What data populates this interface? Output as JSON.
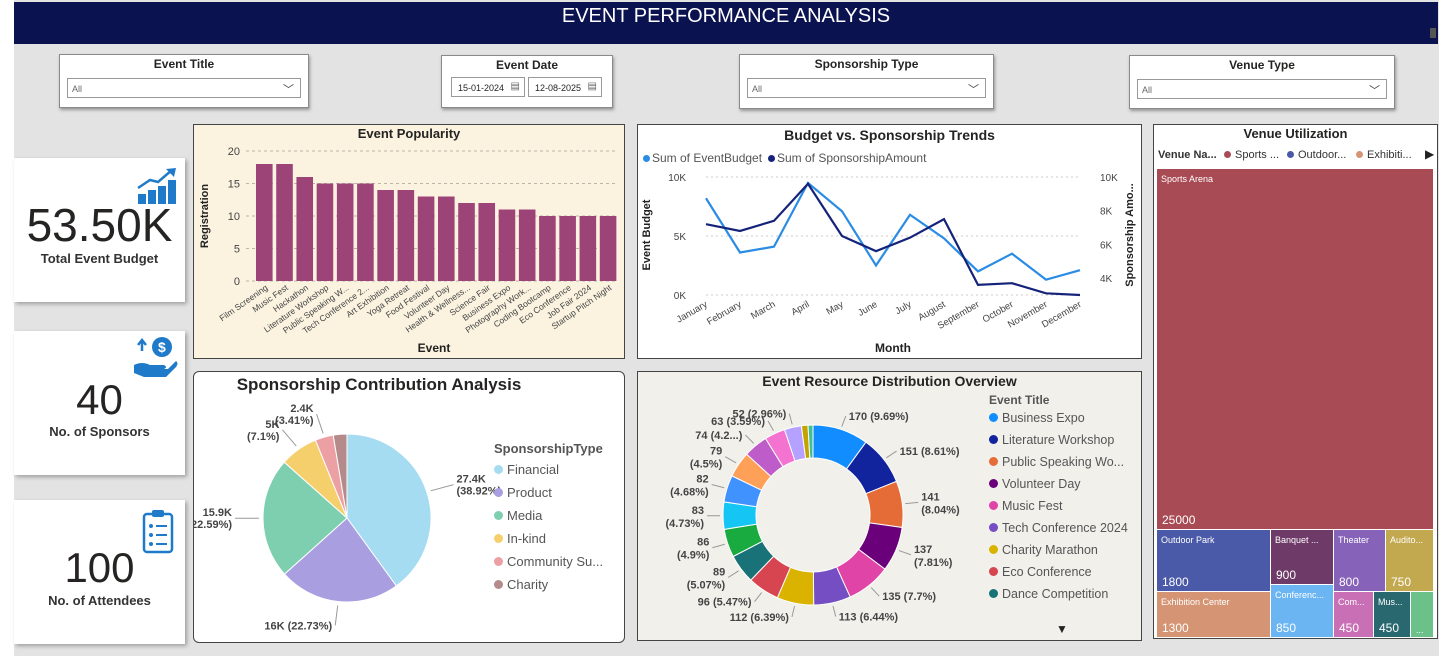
{
  "header": {
    "title": "EVENT PERFORMANCE ANALYSIS"
  },
  "filters": {
    "event_title": {
      "label": "Event Title",
      "value": "All"
    },
    "event_date": {
      "label": "Event Date",
      "start": "15-01-2024",
      "end": "12-08-2025"
    },
    "sponsorship_type": {
      "label": "Sponsorship Type",
      "value": "All"
    },
    "venue_type": {
      "label": "Venue Type",
      "value": "All"
    }
  },
  "kpis": {
    "budget": {
      "value": "53.50K",
      "label": "Total Event Budget",
      "icon": "growth-chart-icon"
    },
    "sponsors": {
      "value": "40",
      "label": "No. of Sponsors",
      "icon": "hand-money-icon"
    },
    "attendees": {
      "value": "100",
      "label": "No. of Attendees",
      "icon": "clipboard-icon"
    }
  },
  "colors": {
    "bar": "#9c4378",
    "line_budget": "#2a8ce4",
    "line_sponsor": "#15227a",
    "header": "#0b1250"
  },
  "chart_data": [
    {
      "type": "bar",
      "title": "Event Popularity",
      "xlabel": "Event",
      "ylabel": "Registration",
      "ylim": [
        0,
        20
      ],
      "yticks": [
        "0",
        "5",
        "10",
        "15",
        "20"
      ],
      "categories": [
        "Film Screening",
        "Music Fest",
        "Hackathon",
        "Literature Workshop",
        "Public Speaking W...",
        "Tech Conference 2...",
        "Art Exhibition",
        "Yoga Retreat",
        "Food Festival",
        "Volunteer Day",
        "Health & Wellness...",
        "Science Fair",
        "Business Expo",
        "Photography Work...",
        "Coding Bootcamp",
        "Eco Conference",
        "Job Fair 2024",
        "Startup Pitch Night"
      ],
      "values": [
        18,
        18,
        16,
        15,
        15,
        15,
        14,
        14,
        13,
        13,
        12,
        12,
        11,
        11,
        10,
        10,
        10,
        10
      ]
    },
    {
      "type": "line",
      "title": "Budget vs. Sponsorship Trends",
      "xlabel": "Month",
      "ylabel": "Event Budget",
      "ylabel_right": "Sponsorship Amo...",
      "yticks_left": [
        "0K",
        "5K",
        "10K"
      ],
      "yticks_right": [
        "4K",
        "6K",
        "8K",
        "10K"
      ],
      "ylim_left": [
        0,
        10000
      ],
      "ylim_right": [
        3000,
        10000
      ],
      "categories": [
        "January",
        "February",
        "March",
        "April",
        "May",
        "June",
        "July",
        "August",
        "September",
        "October",
        "November",
        "December"
      ],
      "series": [
        {
          "name": "Sum of EventBudget",
          "axis": "left",
          "values": [
            8200,
            3600,
            4100,
            9500,
            7100,
            2500,
            6800,
            4800,
            2000,
            3500,
            1300,
            2100
          ]
        },
        {
          "name": "Sum of SponsorshipAmount",
          "axis": "right",
          "values": [
            7200,
            6800,
            7400,
            9600,
            6500,
            5600,
            6400,
            7500,
            3600,
            3700,
            3100,
            3000
          ]
        }
      ]
    },
    {
      "type": "pie",
      "title": "Sponsorship Contribution Analysis",
      "legend_title": "SponsorshipType",
      "categories": [
        "Financial",
        "Product",
        "Media",
        "In-kind",
        "Community Su...",
        "Charity"
      ],
      "values": [
        27400,
        16000,
        15900,
        5000,
        2400,
        1800
      ],
      "labels": [
        "27.4K\n(38.92%)",
        "16K (22.73%)",
        "15.9K\n(22.59%)",
        "5K\n(7.1%)",
        "2.4K\n(3.41%)",
        ""
      ],
      "colors": [
        "#a6dcf2",
        "#a99ee0",
        "#7ecfb0",
        "#f5cf6c",
        "#eca0a4",
        "#b58a8a"
      ]
    },
    {
      "type": "pie",
      "subtype": "donut",
      "title": "Event Resource Distribution Overview",
      "legend_title": "Event Title",
      "legend": [
        "Business Expo",
        "Literature Workshop",
        "Public Speaking Wo...",
        "Volunteer Day",
        "Music Fest",
        "Tech Conference 2024",
        "Charity Marathon",
        "Eco Conference",
        "Dance Competition"
      ],
      "values": [
        170,
        151,
        141,
        137,
        135,
        113,
        112,
        96,
        89,
        86,
        83,
        82,
        79,
        74,
        63,
        52,
        20,
        15
      ],
      "labels": [
        "170 (9.69%)",
        "151 (8.61%)",
        "141\n(8.04%)",
        "137\n(7.81%)",
        "135 (7.7%)",
        "113 (6.44%)",
        "112 (6.39%)",
        "96 (5.47%)",
        "89\n(5.07%)",
        "86\n(4.9%)",
        "83\n(4.73%)",
        "82\n(4.68%)",
        "79\n(4.5%)",
        "74 (4.2...)",
        "63 (3.59%)",
        "52 (2.96%)",
        "",
        ""
      ],
      "colors": [
        "#118dff",
        "#12239e",
        "#e66c37",
        "#6b007b",
        "#e044a7",
        "#744ec2",
        "#d9b300",
        "#d64550",
        "#197278",
        "#1aab40",
        "#15c6f4",
        "#4092ff",
        "#ffa058",
        "#be5dc9",
        "#f472d0",
        "#b5a1ff",
        "#c4a200",
        "#40c090"
      ]
    },
    {
      "type": "treemap",
      "title": "Venue Utilization",
      "legend_title": "Venue Na...",
      "legend": [
        "Sports ...",
        "Outdoor...",
        "Exhibiti..."
      ],
      "categories": [
        "Sports Arena",
        "Outdoor Park",
        "Banquet ...",
        "Theater",
        "Audito...",
        "Exhibition Center",
        "Conferenc...",
        "Com...",
        "Mus...",
        ""
      ],
      "values": [
        25000,
        1800,
        900,
        800,
        750,
        1300,
        850,
        450,
        450,
        300
      ],
      "value_labels": [
        "25000",
        "1800",
        "900",
        "800",
        "750",
        "1300",
        "850",
        "450",
        "450",
        "..."
      ]
    }
  ]
}
